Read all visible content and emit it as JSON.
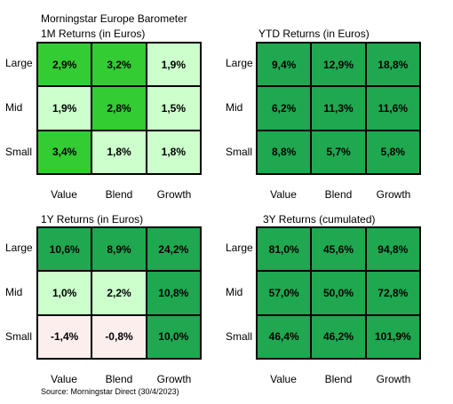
{
  "header": {
    "title": "Morningstar Europe Barometer"
  },
  "footer": {
    "source": "Source: Morningstar Direct (30/4/2023)"
  },
  "colors": {
    "bright_green": "#33cc33",
    "light_green": "#ccffcc",
    "dark_green": "#1fa850",
    "light_pink": "#fdeeee"
  },
  "chart_data": [
    {
      "type": "heatmap",
      "title": "1M Returns (in Euros)",
      "rows": [
        "Large",
        "Mid",
        "Small"
      ],
      "columns": [
        "Value",
        "Blend",
        "Growth"
      ],
      "values": [
        [
          2.9,
          3.2,
          1.9
        ],
        [
          1.9,
          2.8,
          1.5
        ],
        [
          3.4,
          1.8,
          1.8
        ]
      ],
      "labels": [
        [
          "2,9%",
          "3,2%",
          "1,9%"
        ],
        [
          "1,9%",
          "2,8%",
          "1,5%"
        ],
        [
          "3,4%",
          "1,8%",
          "1,8%"
        ]
      ],
      "fills": [
        [
          "#33cc33",
          "#33cc33",
          "#ccffcc"
        ],
        [
          "#ccffcc",
          "#33cc33",
          "#ccffcc"
        ],
        [
          "#33cc33",
          "#ccffcc",
          "#ccffcc"
        ]
      ]
    },
    {
      "type": "heatmap",
      "title": "YTD Returns (in Euros)",
      "rows": [
        "Large",
        "Mid",
        "Small"
      ],
      "columns": [
        "Value",
        "Blend",
        "Growth"
      ],
      "values": [
        [
          9.4,
          12.9,
          18.8
        ],
        [
          6.2,
          11.3,
          11.6
        ],
        [
          8.8,
          5.7,
          5.8
        ]
      ],
      "labels": [
        [
          "9,4%",
          "12,9%",
          "18,8%"
        ],
        [
          "6,2%",
          "11,3%",
          "11,6%"
        ],
        [
          "8,8%",
          "5,7%",
          "5,8%"
        ]
      ],
      "fills": [
        [
          "#1fa850",
          "#1fa850",
          "#1fa850"
        ],
        [
          "#1fa850",
          "#1fa850",
          "#1fa850"
        ],
        [
          "#1fa850",
          "#1fa850",
          "#1fa850"
        ]
      ]
    },
    {
      "type": "heatmap",
      "title": "1Y Returns (in Euros)",
      "rows": [
        "Large",
        "Mid",
        "Small"
      ],
      "columns": [
        "Value",
        "Blend",
        "Growth"
      ],
      "values": [
        [
          10.6,
          8.9,
          24.2
        ],
        [
          1.0,
          2.2,
          10.8
        ],
        [
          -1.4,
          -0.8,
          10.0
        ]
      ],
      "labels": [
        [
          "10,6%",
          "8,9%",
          "24,2%"
        ],
        [
          "1,0%",
          "2,2%",
          "10,8%"
        ],
        [
          "-1,4%",
          "-0,8%",
          "10,0%"
        ]
      ],
      "fills": [
        [
          "#1fa850",
          "#1fa850",
          "#1fa850"
        ],
        [
          "#ccffcc",
          "#ccffcc",
          "#1fa850"
        ],
        [
          "#fdeeee",
          "#fdeeee",
          "#1fa850"
        ]
      ]
    },
    {
      "type": "heatmap",
      "title": "3Y Returns (cumulated)",
      "rows": [
        "Large",
        "Mid",
        "Small"
      ],
      "columns": [
        "Value",
        "Blend",
        "Growth"
      ],
      "values": [
        [
          81.0,
          45.6,
          94.8
        ],
        [
          57.0,
          50.0,
          72.8
        ],
        [
          46.4,
          46.2,
          101.9
        ]
      ],
      "labels": [
        [
          "81,0%",
          "45,6%",
          "94,8%"
        ],
        [
          "57,0%",
          "50,0%",
          "72,8%"
        ],
        [
          "46,4%",
          "46,2%",
          "101,9%"
        ]
      ],
      "fills": [
        [
          "#1fa850",
          "#1fa850",
          "#1fa850"
        ],
        [
          "#1fa850",
          "#1fa850",
          "#1fa850"
        ],
        [
          "#1fa850",
          "#1fa850",
          "#1fa850"
        ]
      ]
    }
  ]
}
